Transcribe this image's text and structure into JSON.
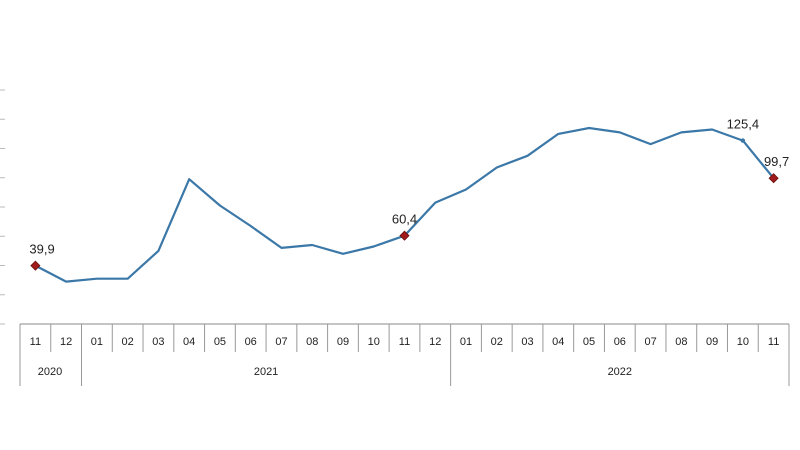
{
  "chart_data": {
    "type": "line",
    "title": "",
    "xlabel": "",
    "ylabel": "",
    "ylim": [
      0,
      160
    ],
    "grid": false,
    "legend": "none",
    "series_color": "#3b78a8",
    "marker_color": "#a01c1c",
    "categories": [
      "11",
      "12",
      "01",
      "02",
      "03",
      "04",
      "05",
      "06",
      "07",
      "08",
      "09",
      "10",
      "11",
      "12",
      "01",
      "02",
      "03",
      "04",
      "05",
      "06",
      "07",
      "08",
      "09",
      "10",
      "11"
    ],
    "years": [
      {
        "label": "2020",
        "start": 0,
        "end": 1
      },
      {
        "label": "2021",
        "start": 2,
        "end": 13
      },
      {
        "label": "2022",
        "start": 14,
        "end": 24
      }
    ],
    "series": [
      {
        "values": [
          39.9,
          29,
          31,
          31,
          50,
          99,
          81,
          67,
          52,
          54,
          48,
          53,
          60.4,
          83,
          92,
          107,
          115,
          130,
          134,
          131,
          123,
          131,
          133,
          125.4,
          99.7
        ]
      }
    ],
    "annotations": [
      {
        "index": 0,
        "text": "39,9",
        "marker": "diamond"
      },
      {
        "index": 12,
        "text": "60,4",
        "marker": "diamond"
      },
      {
        "index": 23,
        "text": "125,4",
        "marker": "none"
      },
      {
        "index": 24,
        "text": "99,7",
        "marker": "diamond"
      }
    ]
  }
}
